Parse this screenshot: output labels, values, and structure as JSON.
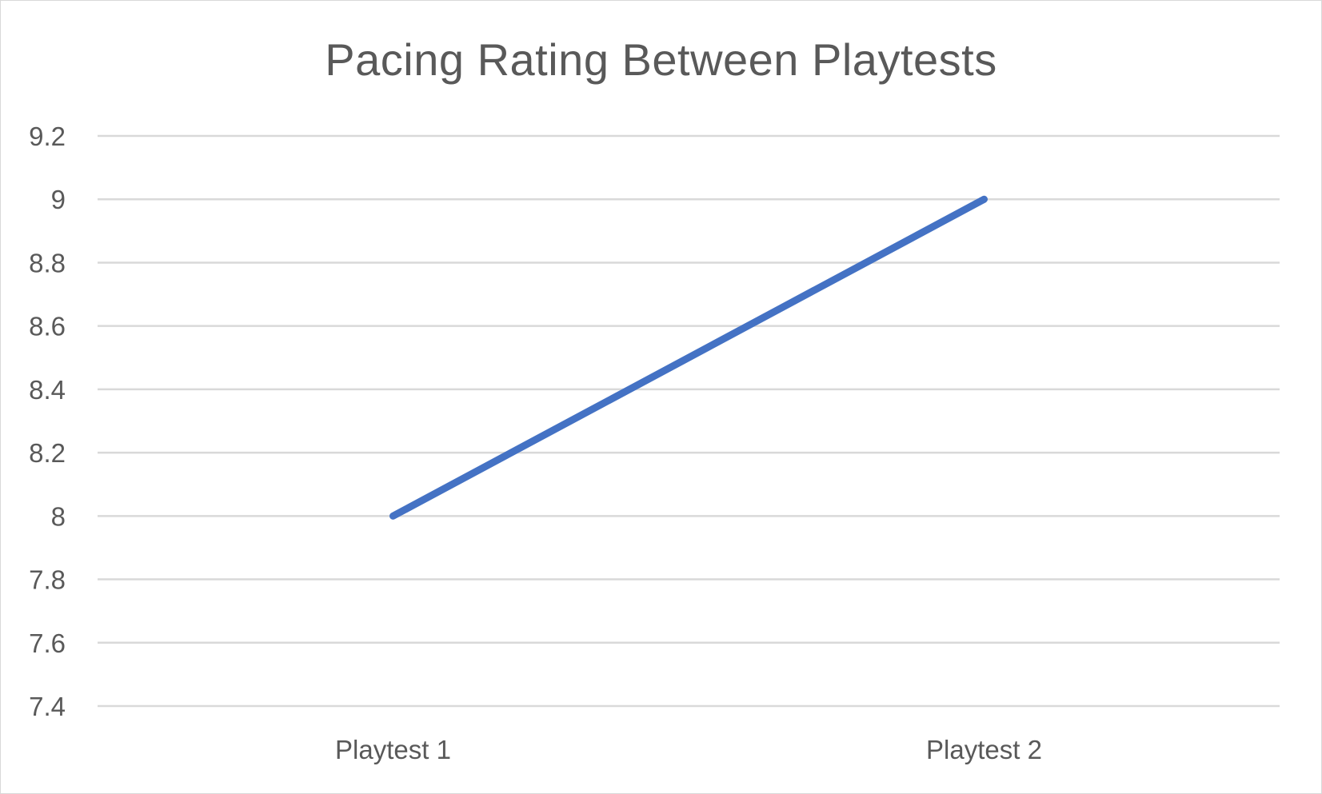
{
  "chart_data": {
    "type": "line",
    "title": "Pacing Rating Between Playtests",
    "xlabel": "",
    "ylabel": "",
    "categories": [
      "Playtest 1",
      "Playtest 2"
    ],
    "series": [
      {
        "values": [
          8,
          9
        ],
        "color": "#4472c4"
      }
    ],
    "ylim": [
      7.4,
      9.2
    ],
    "yticks": [
      9.2,
      9,
      8.8,
      8.6,
      8.4,
      8.2,
      8,
      7.8,
      7.6,
      7.4
    ],
    "ytick_labels": [
      "9.2",
      "9",
      "8.8",
      "8.6",
      "8.4",
      "8.2",
      "8",
      "7.8",
      "7.6",
      "7.4"
    ],
    "grid": true,
    "legend": "none",
    "grid_color": "#d9d9d9",
    "text_color": "#595959"
  }
}
